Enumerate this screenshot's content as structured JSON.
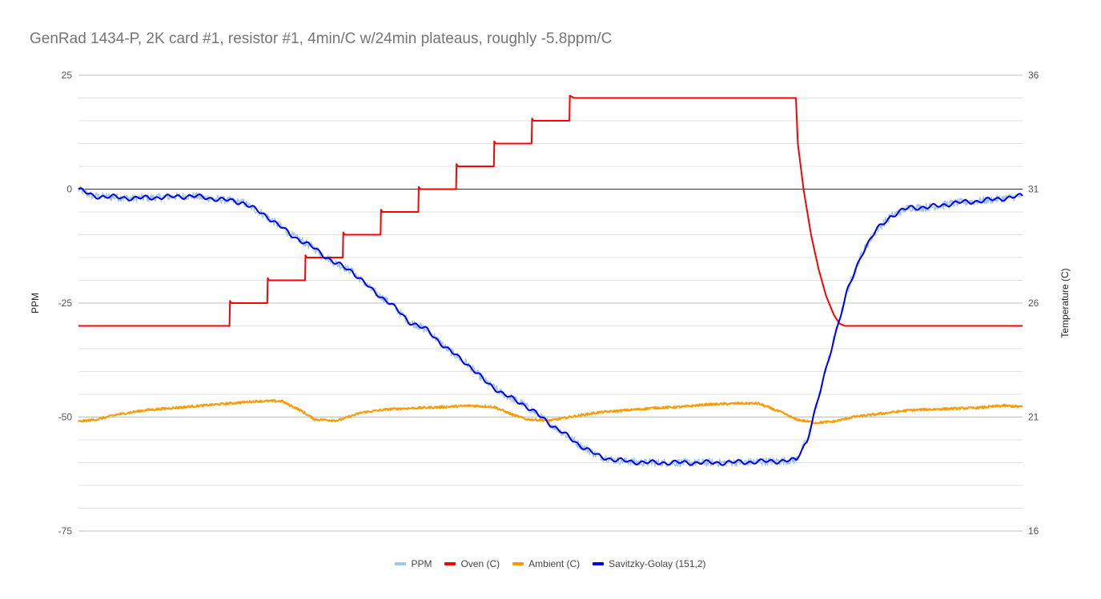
{
  "chart_data": {
    "type": "line",
    "title": "GenRad 1434-P, 2K card #1, resistor #1, 4min/C w/24min plateaus, roughly -5.8ppm/C",
    "ylabel_left": "PPM",
    "ylabel_right": "Temperature (C)",
    "left_axis": {
      "min": -75,
      "max": 25,
      "ticks": [
        25,
        0,
        -25,
        -50,
        -75
      ]
    },
    "right_axis": {
      "min": 16,
      "max": 36,
      "ticks": [
        36,
        31,
        26,
        21,
        16
      ]
    },
    "x_range": [
      0,
      1000
    ],
    "grid": true,
    "legend_position": "bottom",
    "series": [
      {
        "name": "PPM",
        "axis": "left",
        "color": "#9fc5e8",
        "noisy": true,
        "noise": 0.9,
        "points": [
          [
            0,
            0
          ],
          [
            15,
            -1.5
          ],
          [
            60,
            -2
          ],
          [
            120,
            -1.5
          ],
          [
            160,
            -2.5
          ],
          [
            175,
            -3
          ],
          [
            200,
            -6
          ],
          [
            225,
            -10
          ],
          [
            250,
            -13
          ],
          [
            270,
            -16
          ],
          [
            290,
            -18
          ],
          [
            310,
            -22
          ],
          [
            330,
            -25
          ],
          [
            350,
            -29
          ],
          [
            370,
            -31
          ],
          [
            390,
            -35
          ],
          [
            410,
            -38
          ],
          [
            430,
            -42
          ],
          [
            450,
            -45
          ],
          [
            470,
            -47
          ],
          [
            490,
            -50
          ],
          [
            510,
            -53
          ],
          [
            530,
            -56
          ],
          [
            550,
            -58.5
          ],
          [
            570,
            -59.5
          ],
          [
            600,
            -60
          ],
          [
            640,
            -60
          ],
          [
            680,
            -60
          ],
          [
            720,
            -59.8
          ],
          [
            760,
            -59.5
          ],
          [
            772,
            -55
          ],
          [
            785,
            -45
          ],
          [
            800,
            -33
          ],
          [
            815,
            -22
          ],
          [
            830,
            -14
          ],
          [
            845,
            -9
          ],
          [
            860,
            -6
          ],
          [
            880,
            -4
          ],
          [
            900,
            -4
          ],
          [
            930,
            -3
          ],
          [
            960,
            -2.5
          ],
          [
            1000,
            -1.5
          ]
        ]
      },
      {
        "name": "Oven (C)",
        "axis": "right",
        "color": "#ff0000",
        "noisy": false,
        "points": [
          [
            0,
            25
          ],
          [
            160,
            25
          ],
          [
            160.5,
            26.1
          ],
          [
            162,
            26
          ],
          [
            200,
            26
          ],
          [
            200.5,
            27.1
          ],
          [
            202,
            27
          ],
          [
            240,
            27
          ],
          [
            240.5,
            28.1
          ],
          [
            242,
            28
          ],
          [
            280,
            28
          ],
          [
            280.5,
            29.1
          ],
          [
            282,
            29
          ],
          [
            320,
            29
          ],
          [
            320.5,
            30.1
          ],
          [
            322,
            30
          ],
          [
            360,
            30
          ],
          [
            360.5,
            31.1
          ],
          [
            362,
            31
          ],
          [
            400,
            31
          ],
          [
            400.5,
            32.1
          ],
          [
            402,
            32
          ],
          [
            440,
            32
          ],
          [
            440.5,
            33.1
          ],
          [
            442,
            33
          ],
          [
            480,
            33
          ],
          [
            480.5,
            34.1
          ],
          [
            482,
            34
          ],
          [
            520,
            34
          ],
          [
            520.5,
            35.1
          ],
          [
            525,
            35
          ],
          [
            760,
            35
          ],
          [
            762,
            33
          ],
          [
            768,
            31
          ],
          [
            776,
            29
          ],
          [
            784,
            27.5
          ],
          [
            792,
            26.3
          ],
          [
            800,
            25.5
          ],
          [
            806,
            25.1
          ],
          [
            812,
            25
          ],
          [
            900,
            25
          ],
          [
            1000,
            25
          ]
        ]
      },
      {
        "name": "Ambient (C)",
        "axis": "right",
        "color": "#ff9900",
        "noisy": true,
        "noise": 0.05,
        "points": [
          [
            0,
            20.8
          ],
          [
            20,
            20.9
          ],
          [
            40,
            21.1
          ],
          [
            70,
            21.3
          ],
          [
            100,
            21.4
          ],
          [
            130,
            21.5
          ],
          [
            160,
            21.6
          ],
          [
            190,
            21.7
          ],
          [
            215,
            21.7
          ],
          [
            235,
            21.3
          ],
          [
            250,
            20.9
          ],
          [
            275,
            20.85
          ],
          [
            300,
            21.2
          ],
          [
            330,
            21.35
          ],
          [
            360,
            21.4
          ],
          [
            390,
            21.45
          ],
          [
            415,
            21.5
          ],
          [
            440,
            21.45
          ],
          [
            460,
            21.1
          ],
          [
            475,
            20.9
          ],
          [
            500,
            20.85
          ],
          [
            520,
            21.0
          ],
          [
            550,
            21.2
          ],
          [
            580,
            21.3
          ],
          [
            610,
            21.4
          ],
          [
            640,
            21.45
          ],
          [
            665,
            21.55
          ],
          [
            700,
            21.6
          ],
          [
            720,
            21.6
          ],
          [
            745,
            21.2
          ],
          [
            760,
            20.9
          ],
          [
            780,
            20.75
          ],
          [
            800,
            20.8
          ],
          [
            820,
            21.0
          ],
          [
            850,
            21.15
          ],
          [
            880,
            21.3
          ],
          [
            910,
            21.35
          ],
          [
            950,
            21.4
          ],
          [
            980,
            21.5
          ],
          [
            1000,
            21.45
          ]
        ]
      },
      {
        "name": "Savitzky-Golay (151,2)",
        "axis": "left",
        "color": "#0000ee",
        "noisy": false,
        "wiggle": true,
        "points": [
          [
            0,
            0
          ],
          [
            15,
            -1.5
          ],
          [
            60,
            -2
          ],
          [
            120,
            -1.5
          ],
          [
            160,
            -2.5
          ],
          [
            175,
            -3
          ],
          [
            200,
            -6
          ],
          [
            225,
            -10
          ],
          [
            250,
            -13
          ],
          [
            270,
            -16
          ],
          [
            290,
            -18
          ],
          [
            310,
            -22
          ],
          [
            330,
            -25
          ],
          [
            350,
            -29
          ],
          [
            370,
            -31
          ],
          [
            390,
            -35
          ],
          [
            410,
            -38
          ],
          [
            430,
            -42
          ],
          [
            450,
            -45
          ],
          [
            470,
            -47
          ],
          [
            490,
            -50
          ],
          [
            510,
            -53
          ],
          [
            530,
            -56
          ],
          [
            550,
            -58.5
          ],
          [
            570,
            -59.5
          ],
          [
            600,
            -60
          ],
          [
            640,
            -60
          ],
          [
            680,
            -60
          ],
          [
            720,
            -59.8
          ],
          [
            760,
            -59.5
          ],
          [
            772,
            -55
          ],
          [
            785,
            -45
          ],
          [
            800,
            -33
          ],
          [
            815,
            -22
          ],
          [
            830,
            -14
          ],
          [
            845,
            -9
          ],
          [
            860,
            -6
          ],
          [
            880,
            -4
          ],
          [
            900,
            -4
          ],
          [
            930,
            -3
          ],
          [
            960,
            -2.5
          ],
          [
            1000,
            -1.5
          ]
        ]
      }
    ]
  }
}
